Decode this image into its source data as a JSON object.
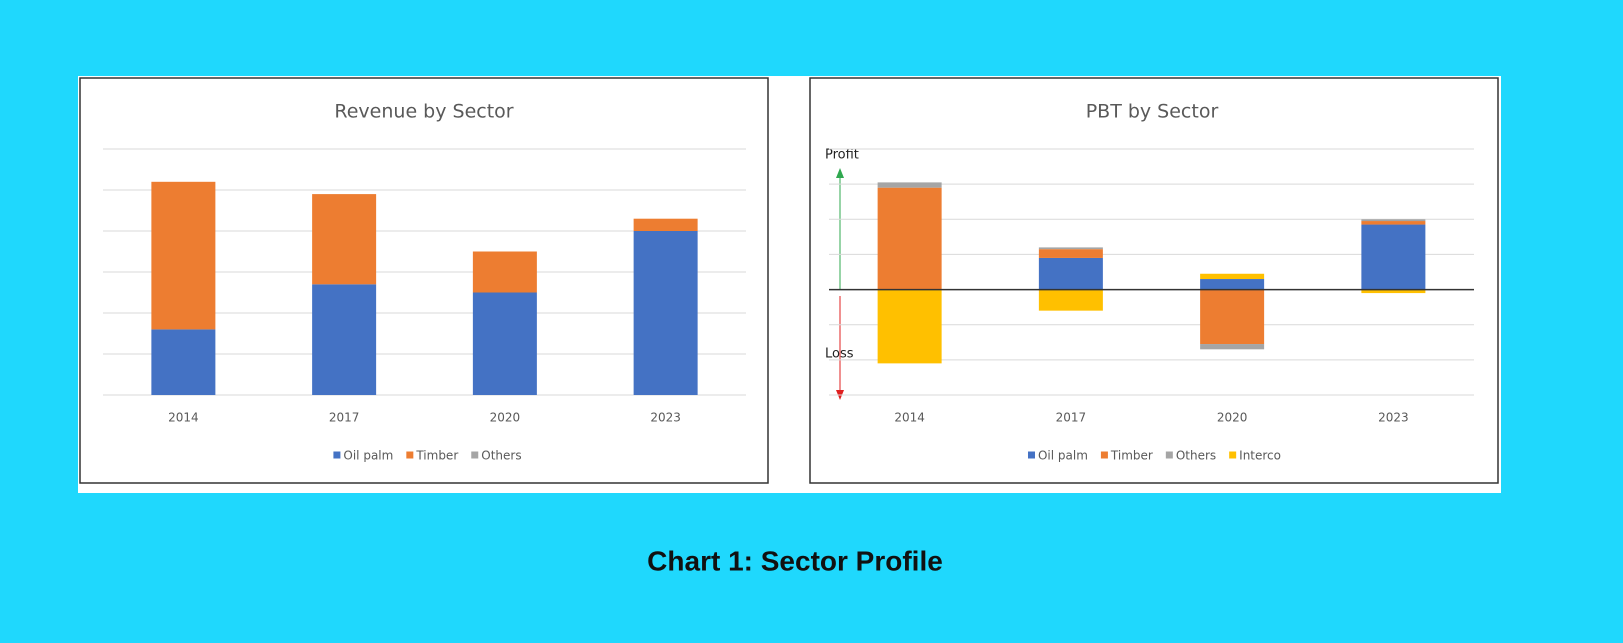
{
  "caption": "Chart 1: Sector Profile",
  "chart_data": [
    {
      "type": "bar",
      "stacked": true,
      "title": "Revenue by Sector",
      "categories": [
        "2014",
        "2017",
        "2020",
        "2023"
      ],
      "series": [
        {
          "name": "Oil palm",
          "color": "#4472c4",
          "values": [
            1.6,
            2.7,
            2.5,
            4.0
          ]
        },
        {
          "name": "Timber",
          "color": "#ed7d31",
          "values": [
            3.6,
            2.2,
            1.0,
            0.3
          ]
        },
        {
          "name": "Others",
          "color": "#a5a5a5",
          "values": [
            0,
            0,
            0,
            0
          ]
        }
      ],
      "ylim": [
        0,
        6
      ],
      "yticks": [
        0,
        1,
        2,
        3,
        4,
        5,
        6
      ],
      "grid": true,
      "legend": "bottom"
    },
    {
      "type": "bar",
      "stacked": true,
      "title": "PBT by Sector",
      "categories": [
        "2014",
        "2017",
        "2020",
        "2023"
      ],
      "series": [
        {
          "name": "Oil palm",
          "color": "#4472c4",
          "values": [
            0,
            0.9,
            0.3,
            1.85
          ]
        },
        {
          "name": "Timber",
          "color": "#ed7d31",
          "values": [
            2.9,
            0.25,
            -1.55,
            0.1
          ]
        },
        {
          "name": "Others",
          "color": "#a5a5a5",
          "values": [
            0.15,
            0.05,
            -0.15,
            0.05
          ]
        },
        {
          "name": "Interco",
          "color": "#ffc000",
          "values": [
            -2.1,
            -0.6,
            0.15,
            -0.1
          ]
        }
      ],
      "annotations": [
        {
          "text": "Profit"
        },
        {
          "text": "Loss"
        }
      ],
      "ylim": [
        -3,
        4
      ],
      "yticks": [
        -3,
        -2,
        -1,
        0,
        1,
        2,
        3,
        4
      ],
      "grid": true,
      "legend": "bottom"
    }
  ]
}
